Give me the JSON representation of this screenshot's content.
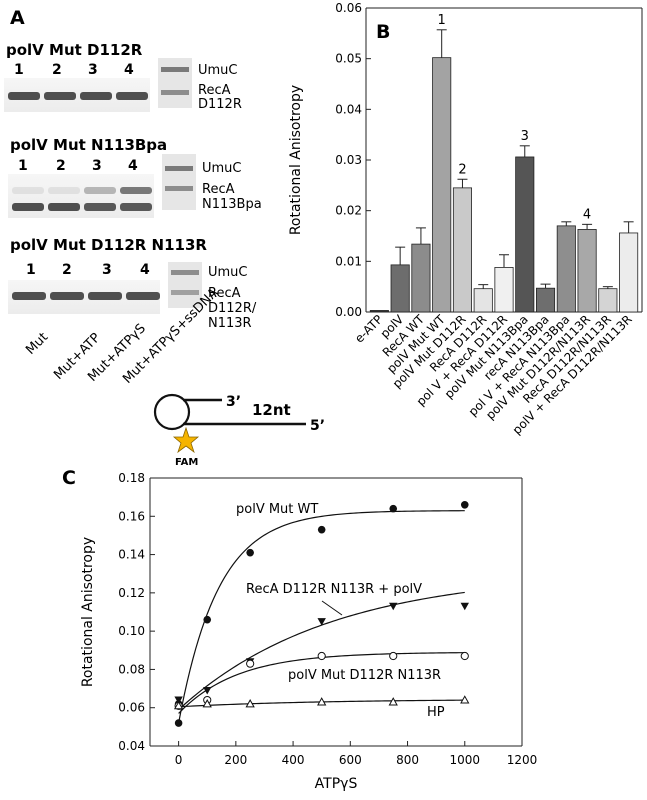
{
  "panels": {
    "A": "A",
    "B": "B",
    "C": "C"
  },
  "panel_a": {
    "gels": [
      {
        "title": "polV Mut D112R",
        "lanes": [
          "1",
          "2",
          "3",
          "4"
        ],
        "band_top": "UmuC",
        "band_mid": "RecA",
        "band_bot": "D112R",
        "intensity": [
          0.85,
          0.85,
          0.85,
          0.85
        ],
        "upper": [
          0,
          0,
          0,
          0
        ]
      },
      {
        "title": "polV Mut N113Bpa",
        "lanes": [
          "1",
          "2",
          "3",
          "4"
        ],
        "band_top": "UmuC",
        "band_mid": "RecA",
        "band_bot": "N113Bpa",
        "intensity": [
          0.85,
          0.85,
          0.8,
          0.8
        ],
        "upper": [
          0.1,
          0.1,
          0.35,
          0.7
        ]
      },
      {
        "title": "polV Mut D112R N113R",
        "lanes": [
          "1",
          "2",
          "3",
          "4"
        ],
        "band_top": "UmuC",
        "band_mid": "RecA",
        "band_bot": "D112R/",
        "band_bot2": "N113R",
        "intensity": [
          0.85,
          0.85,
          0.85,
          0.85
        ],
        "upper": [
          0,
          0,
          0,
          0
        ]
      }
    ],
    "conditions": [
      "Mut",
      "Mut+ATP",
      "Mut+ATPγS",
      "Mut+ATPγS+ssDNA"
    ]
  },
  "panel_b": {
    "chart_data": {
      "type": "bar",
      "ylabel": "Rotational Anisotropy",
      "ylim": [
        0,
        0.06
      ],
      "yticks": [
        "0.00",
        "0.01",
        "0.02",
        "0.03",
        "0.04",
        "0.05",
        "0.06"
      ],
      "categories": [
        "e-ATP",
        "polV",
        "RecA WT",
        "polV Mut WT",
        "polV Mut D112R",
        "RecA D112R",
        "pol V + RecA D112R",
        "polV Mut N113Bpa",
        "recA N113Bpa",
        "pol V + RecA N113Bpa",
        "polV Mut D112R/N113R",
        "RecA D112R/N113R",
        "polV + RecA D112R/N113R"
      ],
      "values": [
        0.0003,
        0.0093,
        0.0134,
        0.0502,
        0.0245,
        0.0046,
        0.0088,
        0.0306,
        0.0047,
        0.017,
        0.0163,
        0.0046,
        0.0156
      ],
      "errors": [
        0.0,
        0.0035,
        0.0032,
        0.0055,
        0.0017,
        0.0008,
        0.0025,
        0.0022,
        0.0008,
        0.0008,
        0.001,
        0.0004,
        0.0022
      ],
      "colors": [
        "#333333",
        "#6d6d6d",
        "#8c8c8c",
        "#a3a3a3",
        "#c9c9c9",
        "#e4e4e4",
        "#f0f0f0",
        "#555555",
        "#6e6e6e",
        "#8e8e8e",
        "#a8a8a8",
        "#d4d4d4",
        "#ececec"
      ],
      "annotations": [
        {
          "index": 3,
          "text": "1"
        },
        {
          "index": 4,
          "text": "2"
        },
        {
          "index": 7,
          "text": "3"
        },
        {
          "index": 10,
          "text": "4"
        }
      ]
    }
  },
  "schematic": {
    "label_3": "3’",
    "label_12nt": "12nt",
    "label_5": "5’",
    "label_fam": "FAM"
  },
  "panel_c": {
    "chart_data": {
      "type": "scatter",
      "xlabel": "ATPγS",
      "ylabel": "Rotational Anisotropy",
      "xlim": [
        -100,
        1200
      ],
      "ylim": [
        0.04,
        0.18
      ],
      "xticks": [
        "0",
        "200",
        "400",
        "600",
        "800",
        "1000",
        "1200"
      ],
      "yticks": [
        "0.04",
        "0.06",
        "0.08",
        "0.10",
        "0.12",
        "0.14",
        "0.16",
        "0.18"
      ],
      "series": [
        {
          "name": "polV Mut WT",
          "marker": "filled-circle",
          "x": [
            0,
            0,
            100,
            250,
            500,
            750,
            1000
          ],
          "y": [
            0.052,
            0.062,
            0.106,
            0.141,
            0.153,
            0.164,
            0.166
          ]
        },
        {
          "name": "RecA D112R N113R + polV",
          "marker": "filled-triangle-down",
          "x": [
            0,
            100,
            250,
            500,
            750,
            1000
          ],
          "y": [
            0.064,
            0.069,
            0.084,
            0.105,
            0.113,
            0.113
          ]
        },
        {
          "name": "polV Mut D112R N113R",
          "marker": "open-circle",
          "x": [
            0,
            100,
            250,
            500,
            750,
            1000
          ],
          "y": [
            0.061,
            0.064,
            0.083,
            0.087,
            0.087,
            0.087
          ]
        },
        {
          "name": "HP",
          "marker": "open-triangle",
          "x": [
            0,
            100,
            250,
            500,
            750,
            1000
          ],
          "y": [
            0.061,
            0.062,
            0.062,
            0.063,
            0.063,
            0.064
          ]
        }
      ],
      "fits": [
        {
          "ymin": 0.052,
          "ymax": 0.163,
          "k": 0.0072
        },
        {
          "ymin": 0.059,
          "ymax": 0.131,
          "k": 0.0019
        },
        {
          "ymin": 0.057,
          "ymax": 0.089,
          "k": 0.0049
        },
        {
          "ymin": 0.0605,
          "ymax": 0.0645,
          "k": 0.002
        }
      ]
    }
  }
}
